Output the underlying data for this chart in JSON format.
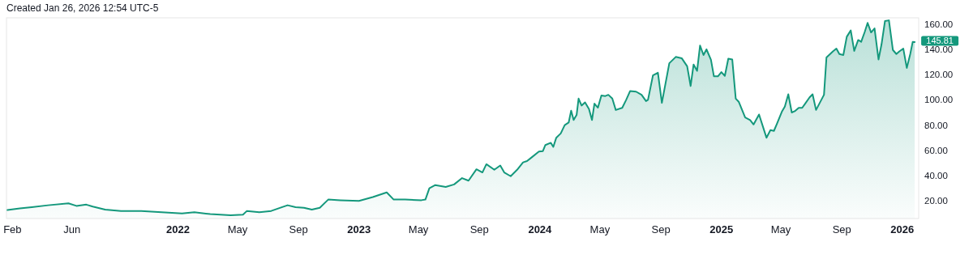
{
  "chart_data": {
    "type": "area",
    "annotations": [
      "Created Jan 26, 2026 12:54 UTC-5",
      {
        "text": "145.81",
        "x": "2026-01-26",
        "y": 145.81
      }
    ],
    "xlim": [
      "2021-01-20",
      "2026-02-03"
    ],
    "ylim": [
      6,
      165
    ],
    "xticks": [
      {
        "value": "2021-02-01",
        "label": "Feb"
      },
      {
        "value": "2021-06-01",
        "label": "Jun"
      },
      {
        "value": "2022-01-01",
        "label": "2022"
      },
      {
        "value": "2022-05-01",
        "label": "May"
      },
      {
        "value": "2022-09-01",
        "label": "Sep"
      },
      {
        "value": "2023-01-01",
        "label": "2023"
      },
      {
        "value": "2023-05-01",
        "label": "May"
      },
      {
        "value": "2023-09-01",
        "label": "Sep"
      },
      {
        "value": "2024-01-01",
        "label": "2024"
      },
      {
        "value": "2024-05-01",
        "label": "May"
      },
      {
        "value": "2024-09-01",
        "label": "Sep"
      },
      {
        "value": "2025-01-01",
        "label": "2025"
      },
      {
        "value": "2025-05-01",
        "label": "May"
      },
      {
        "value": "2025-09-01",
        "label": "Sep"
      },
      {
        "value": "2026-01-01",
        "label": "2026"
      }
    ],
    "yticks": [
      {
        "value": 20,
        "label": "20.00"
      },
      {
        "value": 40,
        "label": "40.00"
      },
      {
        "value": 60,
        "label": "60.00"
      },
      {
        "value": 80,
        "label": "80.00"
      },
      {
        "value": 100,
        "label": "100.00"
      },
      {
        "value": 120,
        "label": "120.00"
      },
      {
        "value": 140,
        "label": "140.00"
      },
      {
        "value": 160,
        "label": "160.00"
      }
    ],
    "series": [
      {
        "color": "#14987c",
        "x": [
          "2021-01-22",
          "2021-02-16",
          "2021-03-12",
          "2021-04-14",
          "2021-05-25",
          "2021-06-10",
          "2021-06-30",
          "2021-07-13",
          "2021-08-07",
          "2021-09-08",
          "2021-10-19",
          "2021-11-29",
          "2022-01-09",
          "2022-02-03",
          "2022-03-07",
          "2022-04-17",
          "2022-05-12",
          "2022-05-20",
          "2022-06-14",
          "2022-07-08",
          "2022-08-10",
          "2022-08-26",
          "2022-09-12",
          "2022-09-28",
          "2022-10-14",
          "2022-10-31",
          "2022-11-24",
          "2023-01-01",
          "2023-01-29",
          "2023-02-26",
          "2023-03-12",
          "2023-04-04",
          "2023-05-07",
          "2023-05-15",
          "2023-05-23",
          "2023-06-04",
          "2023-06-25",
          "2023-07-12",
          "2023-07-28",
          "2023-08-10",
          "2023-08-26",
          "2023-09-07",
          "2023-09-15",
          "2023-10-01",
          "2023-10-13",
          "2023-10-21",
          "2023-11-03",
          "2023-11-16",
          "2023-11-28",
          "2023-12-06",
          "2023-12-14",
          "2023-12-30",
          "2024-01-07",
          "2024-01-12",
          "2024-01-23",
          "2024-01-28",
          "2024-02-03",
          "2024-02-12",
          "2024-02-20",
          "2024-02-28",
          "2024-03-04",
          "2024-03-09",
          "2024-03-15",
          "2024-03-19",
          "2024-03-25",
          "2024-04-01",
          "2024-04-09",
          "2024-04-15",
          "2024-04-20",
          "2024-04-27",
          "2024-05-04",
          "2024-05-12",
          "2024-05-18",
          "2024-05-26",
          "2024-06-02",
          "2024-06-15",
          "2024-06-23",
          "2024-07-01",
          "2024-07-13",
          "2024-07-24",
          "2024-08-02",
          "2024-08-06",
          "2024-08-16",
          "2024-08-26",
          "2024-09-03",
          "2024-09-18",
          "2024-10-01",
          "2024-10-13",
          "2024-10-24",
          "2024-10-31",
          "2024-11-06",
          "2024-11-13",
          "2024-11-19",
          "2024-11-26",
          "2024-12-02",
          "2024-12-11",
          "2024-12-17",
          "2024-12-25",
          "2025-01-01",
          "2025-01-08",
          "2025-01-15",
          "2025-01-23",
          "2025-01-30",
          "2025-02-05",
          "2025-02-18",
          "2025-02-28",
          "2025-03-07",
          "2025-03-18",
          "2025-04-02",
          "2025-04-10",
          "2025-04-17",
          "2025-04-23",
          "2025-05-03",
          "2025-05-09",
          "2025-05-16",
          "2025-05-23",
          "2025-05-29",
          "2025-06-06",
          "2025-06-13",
          "2025-06-19",
          "2025-06-28",
          "2025-07-04",
          "2025-07-11",
          "2025-07-27",
          "2025-08-01",
          "2025-08-14",
          "2025-08-21",
          "2025-08-27",
          "2025-09-04",
          "2025-09-11",
          "2025-09-19",
          "2025-09-26",
          "2025-10-04",
          "2025-10-10",
          "2025-10-17",
          "2025-10-23",
          "2025-10-30",
          "2025-11-06",
          "2025-11-14",
          "2025-11-20",
          "2025-11-27",
          "2025-12-05",
          "2025-12-13",
          "2025-12-20",
          "2025-12-26",
          "2026-01-03",
          "2026-01-10",
          "2026-01-17",
          "2026-01-22",
          "2026-01-26"
        ],
        "values": [
          12.7,
          14,
          15,
          16.5,
          18,
          16,
          17,
          15.5,
          13,
          12,
          12,
          11,
          10,
          11,
          9.5,
          8.5,
          9,
          12,
          11,
          12,
          16.5,
          15,
          14.5,
          13,
          14.5,
          21,
          20.5,
          20,
          23,
          26.7,
          21,
          21,
          20.5,
          21,
          30,
          32.5,
          31,
          33,
          38,
          36,
          45,
          42.5,
          49,
          44.6,
          48,
          42.5,
          39.5,
          44.6,
          50.5,
          51.5,
          54,
          59,
          59.4,
          64.2,
          66,
          62.7,
          70,
          73.4,
          80,
          82,
          91.5,
          84,
          88,
          101,
          95.5,
          98,
          92.7,
          84,
          97,
          93.8,
          103.4,
          103,
          104,
          101,
          92,
          93.7,
          100,
          107,
          106.5,
          104,
          99,
          100,
          119.4,
          121.5,
          97.6,
          129,
          134,
          133,
          126.6,
          111,
          128,
          123,
          143,
          135.5,
          140,
          131.7,
          118.6,
          118.6,
          122,
          119,
          132.6,
          132,
          101,
          98.5,
          86,
          84,
          80.5,
          88.4,
          70,
          76,
          75.4,
          81,
          90.6,
          94.7,
          104.4,
          90,
          91,
          93.7,
          93.7,
          97,
          102,
          104.4,
          92,
          104,
          133.6,
          138.4,
          140.6,
          136.3,
          135.5,
          150,
          155,
          138.8,
          147.4,
          146,
          153.6,
          161,
          153.4,
          156.6,
          132,
          143.8,
          162.4,
          163,
          139.5,
          136.3,
          138.4,
          140.6,
          125.3,
          136.3,
          146,
          145.81
        ]
      }
    ]
  }
}
